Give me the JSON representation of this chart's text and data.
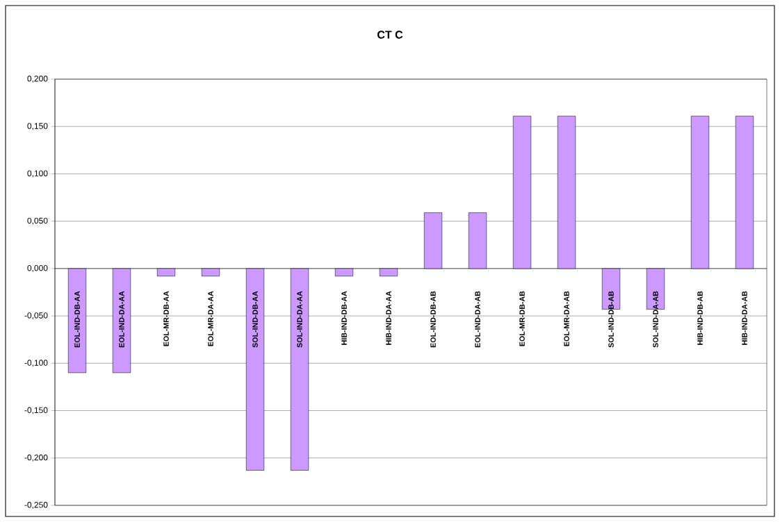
{
  "chart_data": {
    "type": "bar",
    "title": "CT C",
    "categories": [
      "EOL-IND-DB-AA",
      "EOL-IND-DA-AA",
      "EOL-MR-DB-AA",
      "EOL-MR-DA-AA",
      "SOL-IND-DB-AA",
      "SOL-IND-DA-AA",
      "HIB-IND-DB-AA",
      "HIB-IND-DA-AA",
      "EOL-IND-DB-AB",
      "EOL-IND-DA-AB",
      "EOL-MR-DB-AB",
      "EOL-MR-DA-AB",
      "SOL-IND-DB-AB",
      "SOL-IND-DA-AB",
      "HIB-IND-DB-AB",
      "HIB-IND-DA-AB"
    ],
    "values": [
      -0.11,
      -0.11,
      -0.008,
      -0.008,
      -0.213,
      -0.213,
      -0.008,
      -0.008,
      0.059,
      0.059,
      0.161,
      0.161,
      -0.043,
      -0.043,
      0.161,
      0.161
    ],
    "color": "#cc99ff",
    "ylim": [
      -0.25,
      0.2
    ],
    "yticks": [
      {
        "value": -0.25,
        "label": "-0,250"
      },
      {
        "value": -0.2,
        "label": "-0,200"
      },
      {
        "value": -0.15,
        "label": "-0,150"
      },
      {
        "value": -0.1,
        "label": "-0,100"
      },
      {
        "value": -0.05,
        "label": "-0,050"
      },
      {
        "value": 0,
        "label": "0,000"
      },
      {
        "value": 0.05,
        "label": "0,050"
      },
      {
        "value": 0.1,
        "label": "0,100"
      },
      {
        "value": 0.15,
        "label": "0,150"
      },
      {
        "value": 0.2,
        "label": "0,200"
      }
    ],
    "grid": "y"
  }
}
